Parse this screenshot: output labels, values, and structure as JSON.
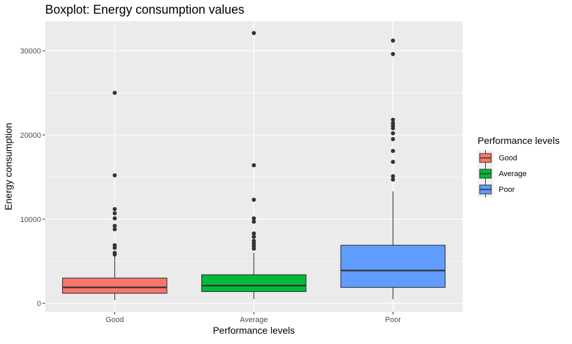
{
  "chart_data": {
    "type": "boxplot",
    "title": "Boxplot: Energy consumption values",
    "xlabel": "Performance levels",
    "ylabel": "Energy consumption",
    "ylim": [
      -1000,
      33500
    ],
    "y_ticks": [
      0,
      10000,
      20000,
      30000
    ],
    "y_tick_labels": [
      "0",
      "10000",
      "20000",
      "30000"
    ],
    "grid": true,
    "categories": [
      "Good",
      "Average",
      "Poor"
    ],
    "legend": {
      "title": "Performance levels",
      "position": "right",
      "entries": [
        "Good",
        "Average",
        "Poor"
      ]
    },
    "series": [
      {
        "name": "Good",
        "color": "#F8766D",
        "min": 400,
        "q1": 1200,
        "median": 1900,
        "q3": 3000,
        "max": 5700,
        "outliers": [
          5800,
          6000,
          6600,
          6900,
          8800,
          9200,
          10100,
          10700,
          11200,
          15200,
          25000
        ]
      },
      {
        "name": "Average",
        "color": "#00BA38",
        "min": 500,
        "q1": 1400,
        "median": 2100,
        "q3": 3400,
        "max": 6000,
        "outliers": [
          6500,
          6800,
          7100,
          7400,
          7900,
          8300,
          9700,
          10100,
          12300,
          16400,
          32100
        ]
      },
      {
        "name": "Poor",
        "color": "#619CFF",
        "min": 500,
        "q1": 1900,
        "median": 3900,
        "q3": 6900,
        "max": 13300,
        "outliers": [
          14700,
          15100,
          16800,
          18100,
          19500,
          20200,
          20800,
          21100,
          21400,
          21800,
          29600,
          31200
        ]
      }
    ]
  }
}
